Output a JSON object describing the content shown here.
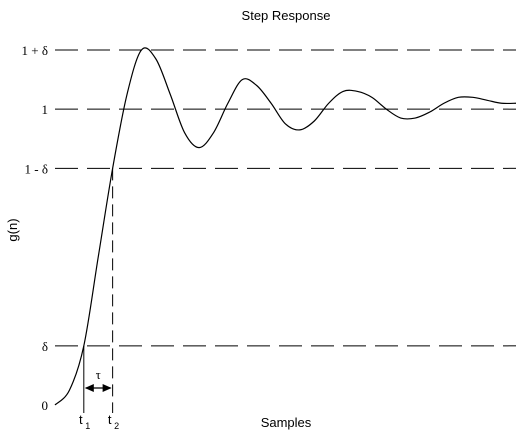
{
  "chart_data": {
    "type": "line",
    "title": "Step Response",
    "xlabel": "Samples",
    "ylabel": "g(n)",
    "ylim": [
      0,
      1.3
    ],
    "grid": false,
    "y_reference_lines": [
      {
        "label": "0",
        "value": 0,
        "style": "axis"
      },
      {
        "label": "δ",
        "value": 0.2,
        "style": "dashed"
      },
      {
        "label": "1 - δ",
        "value": 0.8,
        "style": "dashed"
      },
      {
        "label": "1",
        "value": 1.0,
        "style": "dashed"
      },
      {
        "label": "1 + δ",
        "value": 1.2,
        "style": "dashed"
      }
    ],
    "x_markers": [
      {
        "label": "t",
        "subscript": "1"
      },
      {
        "label": "t",
        "subscript": "2"
      }
    ],
    "annotation": {
      "symbol": "τ"
    },
    "series": [
      {
        "color": "#000000",
        "x": [
          0,
          3,
          6,
          9,
          12,
          15,
          18,
          21,
          24,
          27,
          30,
          33,
          36,
          39,
          42,
          45,
          48,
          51,
          54,
          57,
          60,
          63,
          66,
          69,
          72,
          75,
          78,
          81,
          84,
          87,
          90,
          93,
          96
        ],
        "y": [
          0,
          0.05,
          0.2,
          0.5,
          0.8,
          1.05,
          1.2,
          1.17,
          1.05,
          0.92,
          0.87,
          0.92,
          1.02,
          1.1,
          1.08,
          1.02,
          0.95,
          0.93,
          0.96,
          1.02,
          1.06,
          1.06,
          1.04,
          1.0,
          0.97,
          0.97,
          0.99,
          1.02,
          1.04,
          1.04,
          1.03,
          1.02,
          1.02
        ]
      }
    ]
  }
}
